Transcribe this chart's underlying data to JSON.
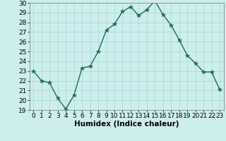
{
  "x": [
    0,
    1,
    2,
    3,
    4,
    5,
    6,
    7,
    8,
    9,
    10,
    11,
    12,
    13,
    14,
    15,
    16,
    17,
    18,
    19,
    20,
    21,
    22,
    23
  ],
  "y": [
    23,
    22,
    21.8,
    20.2,
    19.1,
    20.5,
    23.3,
    23.5,
    25.0,
    27.2,
    27.8,
    29.1,
    29.6,
    28.7,
    29.3,
    30.2,
    28.8,
    27.7,
    26.2,
    24.6,
    23.8,
    22.9,
    22.9,
    21.1
  ],
  "line_color": "#1a6b5a",
  "marker": "*",
  "markersize": 4,
  "linewidth": 1.0,
  "bg_color": "#cceeed",
  "grid_color": "#aad4d2",
  "xlabel": "Humidex (Indice chaleur)",
  "xlim": [
    -0.5,
    23.5
  ],
  "ylim": [
    19,
    30
  ],
  "yticks": [
    19,
    20,
    21,
    22,
    23,
    24,
    25,
    26,
    27,
    28,
    29,
    30
  ],
  "xticks": [
    0,
    1,
    2,
    3,
    4,
    5,
    6,
    7,
    8,
    9,
    10,
    11,
    12,
    13,
    14,
    15,
    16,
    17,
    18,
    19,
    20,
    21,
    22,
    23
  ],
  "tick_fontsize": 6.5,
  "xlabel_fontsize": 7.5,
  "spine_color": "#888888"
}
